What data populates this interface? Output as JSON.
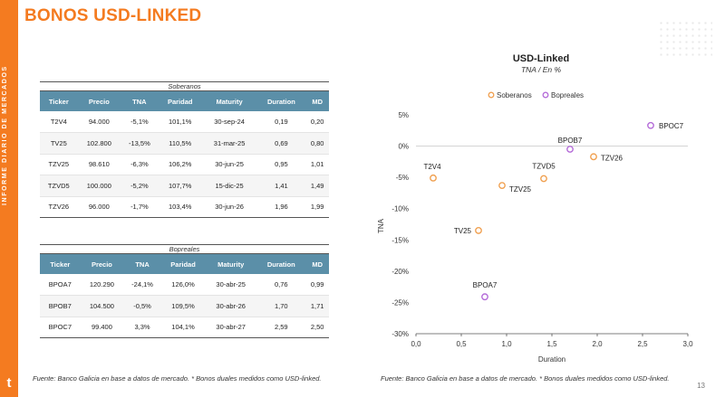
{
  "sidebar": {
    "text": "INFORME DIARIO DE MERCADOS",
    "logo": "t"
  },
  "header": {
    "title": "BONOS USD-LINKED"
  },
  "columns": [
    "Ticker",
    "Precio",
    "TNA",
    "Paridad",
    "Maturity",
    "Duration",
    "MD"
  ],
  "soberanos": {
    "caption": "Soberanos",
    "rows": [
      [
        "T2V4",
        "94.000",
        "-5,1%",
        "101,1%",
        "30-sep-24",
        "0,19",
        "0,20"
      ],
      [
        "TV25",
        "102.800",
        "-13,5%",
        "110,5%",
        "31-mar-25",
        "0,69",
        "0,80"
      ],
      [
        "TZV25",
        "98.610",
        "-6,3%",
        "106,2%",
        "30-jun-25",
        "0,95",
        "1,01"
      ],
      [
        "TZVD5",
        "100.000",
        "-5,2%",
        "107,7%",
        "15-dic-25",
        "1,41",
        "1,49"
      ],
      [
        "TZV26",
        "96.000",
        "-1,7%",
        "103,4%",
        "30-jun-26",
        "1,96",
        "1,99"
      ]
    ]
  },
  "bopreales": {
    "caption": "Bopreales",
    "rows": [
      [
        "BPOA7",
        "120.290",
        "-24,1%",
        "126,0%",
        "30-abr-25",
        "0,76",
        "0,99"
      ],
      [
        "BPOB7",
        "104.500",
        "-0,5%",
        "109,5%",
        "30-abr-26",
        "1,70",
        "1,71"
      ],
      [
        "BPOC7",
        "99.400",
        "3,3%",
        "104,1%",
        "30-abr-27",
        "2,59",
        "2,50"
      ]
    ]
  },
  "chart_data": {
    "type": "scatter",
    "title": "USD-Linked",
    "subtitle": "TNA / En %",
    "xlabel": "Duration",
    "ylabel": "TNA",
    "xlim": [
      0,
      3
    ],
    "ylim": [
      -30,
      5
    ],
    "x_ticks": [
      "0,0",
      "0,5",
      "1,0",
      "1,5",
      "2,0",
      "2,5",
      "3,0"
    ],
    "y_ticks": [
      "5%",
      "0%",
      "-5%",
      "-10%",
      "-15%",
      "-20%",
      "-25%",
      "-30%"
    ],
    "legend_position": "top",
    "series": [
      {
        "name": "Soberanos",
        "color": "#f0a050",
        "points": [
          {
            "label": "T2V4",
            "x": 0.19,
            "y": -5.1
          },
          {
            "label": "TV25",
            "x": 0.69,
            "y": -13.5
          },
          {
            "label": "TZV25",
            "x": 0.95,
            "y": -6.3
          },
          {
            "label": "TZVD5",
            "x": 1.41,
            "y": -5.2
          },
          {
            "label": "TZV26",
            "x": 1.96,
            "y": -1.7
          }
        ]
      },
      {
        "name": "Bopreales",
        "color": "#b46bd8",
        "points": [
          {
            "label": "BPOA7",
            "x": 0.76,
            "y": -24.1
          },
          {
            "label": "BPOB7",
            "x": 1.7,
            "y": -0.5
          },
          {
            "label": "BPOC7",
            "x": 2.59,
            "y": 3.3
          }
        ]
      }
    ]
  },
  "footnotes": {
    "left": "Fuente: Banco Galicia en base a datos de mercado. * Bonos duales medidos como USD-linked.",
    "right": "Fuente: Banco Galicia en base a datos de mercado. * Bonos duales medidos como USD-linked."
  },
  "page_number": "13"
}
